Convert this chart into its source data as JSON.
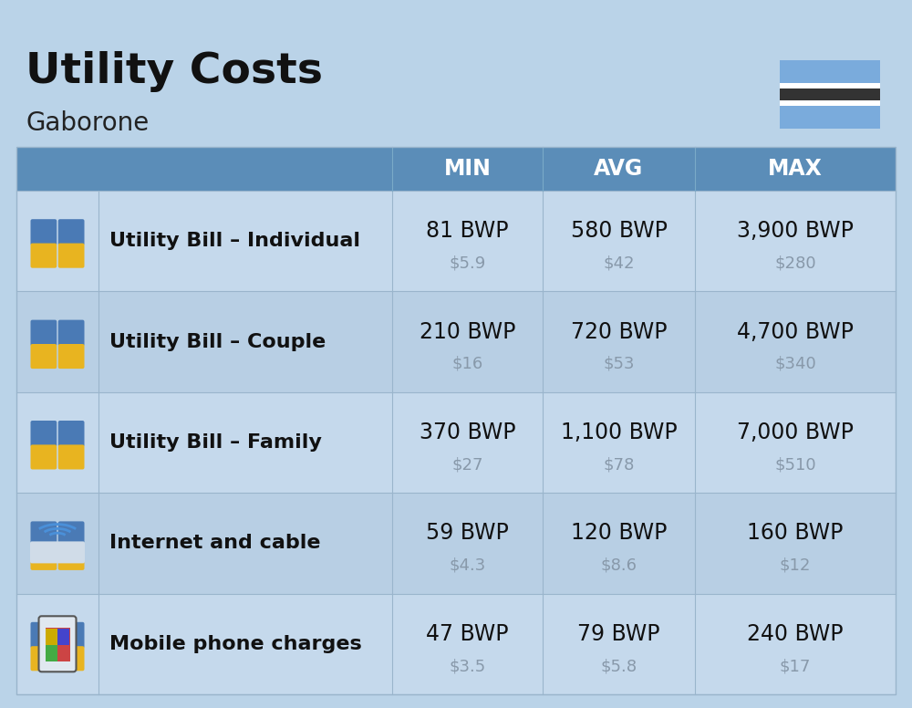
{
  "title": "Utility Costs",
  "subtitle": "Gaborone",
  "background_color": "#bad3e8",
  "header_color": "#5b8db8",
  "header_text_color": "#ffffff",
  "row_color_odd": "#c5d9ec",
  "row_color_even": "#b8cfe4",
  "separator_color": "#9ab5cc",
  "columns": [
    "MIN",
    "AVG",
    "MAX"
  ],
  "rows": [
    {
      "label": "Utility Bill – Individual",
      "min_bwp": "81 BWP",
      "min_usd": "$5.9",
      "avg_bwp": "580 BWP",
      "avg_usd": "$42",
      "max_bwp": "3,900 BWP",
      "max_usd": "$280"
    },
    {
      "label": "Utility Bill – Couple",
      "min_bwp": "210 BWP",
      "min_usd": "$16",
      "avg_bwp": "720 BWP",
      "avg_usd": "$53",
      "max_bwp": "4,700 BWP",
      "max_usd": "$340"
    },
    {
      "label": "Utility Bill – Family",
      "min_bwp": "370 BWP",
      "min_usd": "$27",
      "avg_bwp": "1,100 BWP",
      "avg_usd": "$78",
      "max_bwp": "7,000 BWP",
      "max_usd": "$510"
    },
    {
      "label": "Internet and cable",
      "min_bwp": "59 BWP",
      "min_usd": "$4.3",
      "avg_bwp": "120 BWP",
      "avg_usd": "$8.6",
      "max_bwp": "160 BWP",
      "max_usd": "$12"
    },
    {
      "label": "Mobile phone charges",
      "min_bwp": "47 BWP",
      "min_usd": "$3.5",
      "avg_bwp": "79 BWP",
      "avg_usd": "$5.8",
      "max_bwp": "240 BWP",
      "max_usd": "$17"
    }
  ],
  "title_fontsize": 34,
  "subtitle_fontsize": 20,
  "header_fontsize": 17,
  "label_fontsize": 16,
  "value_fontsize": 17,
  "usd_fontsize": 13,
  "usd_color": "#8899aa",
  "flag_blue": "#7aabdc",
  "flag_black": "#333333",
  "flag_white": "#ffffff"
}
